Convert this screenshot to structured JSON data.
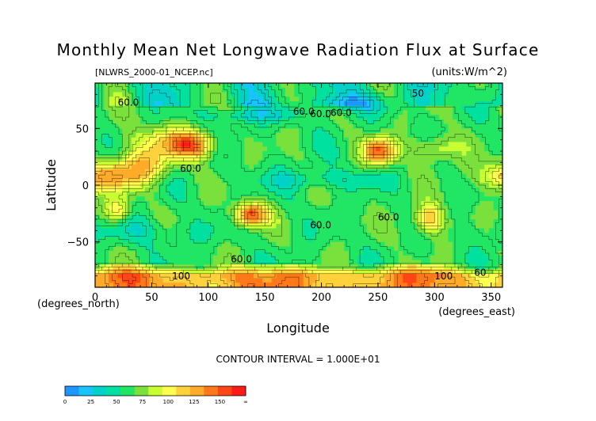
{
  "chart_data": {
    "type": "heatmap",
    "title": "Monthly Mean Net Longwave Radiation Flux at Surface",
    "subtitle_file": "[NLWRS_2000-01_NCEP.nc]",
    "units": "(units:W/m^2)",
    "xlabel": "Longitude",
    "ylabel": "Latitude",
    "x_units_label": "(degrees_east)",
    "y_units_label": "(degrees_north)",
    "xlim": [
      0,
      360
    ],
    "ylim": [
      -90,
      90
    ],
    "x_ticks": [
      0,
      50,
      100,
      150,
      200,
      250,
      300,
      350
    ],
    "y_ticks": [
      -50,
      0,
      50
    ],
    "contour_interval_text": "CONTOUR INTERVAL = 1.000E+01",
    "contour_labels": [
      {
        "text": "60.0",
        "lon": 20,
        "lat": 70
      },
      {
        "text": "60.0",
        "lon": 75,
        "lat": 12
      },
      {
        "text": "60.0",
        "lon": 175,
        "lat": 62
      },
      {
        "text": "60.0",
        "lon": 190,
        "lat": 60
      },
      {
        "text": "60.0",
        "lon": 208,
        "lat": 61
      },
      {
        "text": "60.0",
        "lon": 250,
        "lat": -31
      },
      {
        "text": "60.0",
        "lon": 190,
        "lat": -38
      },
      {
        "text": "60.0",
        "lon": 120,
        "lat": -68
      },
      {
        "text": "100",
        "lon": 68,
        "lat": -83
      },
      {
        "text": "100",
        "lon": 300,
        "lat": -83
      },
      {
        "text": "60",
        "lon": 335,
        "lat": -80
      },
      {
        "text": "50",
        "lon": 280,
        "lat": 78
      }
    ],
    "colorbar": {
      "ticks": [
        "0",
        "25",
        "50",
        "75",
        "100",
        "125",
        "150",
        "∞"
      ],
      "bins": [
        {
          "from": 0,
          "to": 12.5,
          "color": "#1e96ff"
        },
        {
          "from": 12.5,
          "to": 25,
          "color": "#18c4ff"
        },
        {
          "from": 25,
          "to": 37.5,
          "color": "#00d2c8"
        },
        {
          "from": 37.5,
          "to": 50,
          "color": "#00e1a0"
        },
        {
          "from": 50,
          "to": 62.5,
          "color": "#20e664"
        },
        {
          "from": 62.5,
          "to": 75,
          "color": "#7ae13c"
        },
        {
          "from": 75,
          "to": 87.5,
          "color": "#c8ff32"
        },
        {
          "from": 87.5,
          "to": 100,
          "color": "#ffff50"
        },
        {
          "from": 100,
          "to": 112.5,
          "color": "#ffd23c"
        },
        {
          "from": 112.5,
          "to": 125,
          "color": "#ffaa28"
        },
        {
          "from": 125,
          "to": 137.5,
          "color": "#ff7819"
        },
        {
          "from": 137.5,
          "to": 150,
          "color": "#ff4614"
        },
        {
          "from": 150,
          "to": 999,
          "color": "#ff1a1a"
        }
      ]
    }
  }
}
